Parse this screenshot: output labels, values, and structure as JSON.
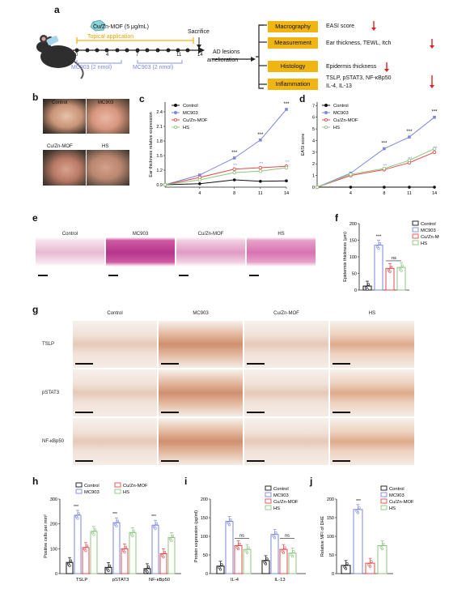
{
  "panels": {
    "a": "a",
    "b": "b",
    "c": "c",
    "d": "d",
    "e": "e",
    "f": "f",
    "g": "g",
    "h": "h",
    "i": "i",
    "j": "j"
  },
  "schematic": {
    "cuzn_dose": "Cu/Zn-MOF (5 μg/mL)",
    "topical": "Topical application",
    "sacrifice": "Sacrifice",
    "days": [
      "0",
      "4",
      "7",
      "11",
      "14"
    ],
    "mc903_a": "MC903 (2 nmol)",
    "mc903_b": "MC903 (2 nmol)",
    "ad1": "AD lesions",
    "ad2": "amelioration",
    "rows": [
      {
        "box": "Macrography",
        "text": "EASI score"
      },
      {
        "box": "Measurement",
        "text": "Ear thickness,  TEWL, Itch"
      },
      {
        "box": "Histology",
        "text": "Epidermis thickness"
      },
      {
        "box": "Inflammation",
        "text": "TSLP, pSTAT3, NF-κBp50",
        "text2": "IL-4, IL-13"
      }
    ],
    "accent": "#f1b512",
    "arrow": "#e02020"
  },
  "photos": {
    "labels": [
      "Control",
      "MC903",
      "Cu/Zn-MOF",
      "HS"
    ]
  },
  "colors": {
    "control": "#111111",
    "mc903": "#7b86e0",
    "cuzn": "#e84848",
    "hs": "#8cc47e"
  },
  "legend": [
    "Control",
    "MC903",
    "Cu/Zn-MOF",
    "HS"
  ],
  "histo_e": {
    "labels": [
      "Control",
      "MC903",
      "Cu/Zn-MOF",
      "HS"
    ]
  },
  "histo_g": {
    "cols": [
      "Control",
      "MC903",
      "Cu/Zn-MOF",
      "HS"
    ],
    "rows": [
      "TSLP",
      "pSTAT3",
      "NF-κBp50"
    ]
  },
  "chart_data": [
    {
      "type": "line",
      "id": "c",
      "ylabel": "Ear thickness relative expression",
      "x": [
        0,
        4,
        8,
        11,
        14
      ],
      "xticks": [
        "4",
        "8",
        "11",
        "14"
      ],
      "yticks": [
        "0.9",
        "1.2",
        "1.5",
        "1.8",
        "2.1",
        "2.4"
      ],
      "ylim": [
        0.85,
        2.6
      ],
      "series": [
        {
          "name": "Control",
          "values": [
            0.9,
            0.92,
            1.0,
            0.97,
            0.98
          ]
        },
        {
          "name": "MC903",
          "values": [
            0.9,
            1.1,
            1.45,
            1.82,
            2.45
          ]
        },
        {
          "name": "Cu/Zn-MOF",
          "values": [
            0.9,
            1.05,
            1.22,
            1.25,
            1.28
          ]
        },
        {
          "name": "HS",
          "values": [
            0.9,
            1.0,
            1.15,
            1.18,
            1.25
          ]
        }
      ],
      "annotations": [
        "***",
        "***",
        "***",
        "***",
        "***"
      ]
    },
    {
      "type": "line",
      "id": "d",
      "ylabel": "EASI score",
      "x": [
        0,
        4,
        8,
        11,
        14
      ],
      "xticks": [
        "4",
        "8",
        "11",
        "14"
      ],
      "yticks": [
        "0",
        "1",
        "2",
        "3",
        "4",
        "5",
        "6",
        "7"
      ],
      "ylim": [
        0,
        7.3
      ],
      "series": [
        {
          "name": "Control",
          "values": [
            0,
            0,
            0,
            0,
            0
          ]
        },
        {
          "name": "MC903",
          "values": [
            0,
            1.2,
            3.3,
            4.3,
            6.0
          ]
        },
        {
          "name": "Cu/Zn-MOF",
          "values": [
            0,
            1.0,
            1.5,
            2.1,
            3.0
          ]
        },
        {
          "name": "HS",
          "values": [
            0,
            1.1,
            1.6,
            2.3,
            3.3
          ]
        }
      ],
      "annotations": [
        "***",
        "***",
        "***"
      ]
    },
    {
      "type": "bar",
      "id": "f",
      "ylabel": "Epidermis thickness (μm)",
      "categories": [
        "Control",
        "MC903",
        "Cu/Zn-MOF",
        "HS"
      ],
      "values": [
        12,
        135,
        65,
        68
      ],
      "yticks": [
        "0",
        "50",
        "100",
        "150",
        "200"
      ],
      "ylim": [
        0,
        200
      ],
      "annotations": [
        "***",
        "ns"
      ]
    },
    {
      "type": "bar",
      "id": "h",
      "ylabel": "Positive cells per mm²",
      "categories": [
        "TSLP",
        "pSTAT3",
        "NF-κBp50"
      ],
      "series": [
        {
          "name": "Control",
          "values": [
            45,
            25,
            20
          ]
        },
        {
          "name": "MC903",
          "values": [
            235,
            205,
            195
          ]
        },
        {
          "name": "Cu/Zn-MOF",
          "values": [
            105,
            100,
            80
          ]
        },
        {
          "name": "HS",
          "values": [
            170,
            165,
            145
          ]
        }
      ],
      "yticks": [
        "0",
        "100",
        "200",
        "300"
      ],
      "ylim": [
        0,
        300
      ]
    },
    {
      "type": "bar",
      "id": "i",
      "ylabel": "Protein expression (pg/ml)",
      "categories": [
        "IL-4",
        "IL-13"
      ],
      "series": [
        {
          "name": "Control",
          "values": [
            20,
            35
          ]
        },
        {
          "name": "MC903",
          "values": [
            140,
            105
          ]
        },
        {
          "name": "Cu/Zn-MOF",
          "values": [
            75,
            65
          ]
        },
        {
          "name": "HS",
          "values": [
            65,
            55
          ]
        }
      ],
      "yticks": [
        "0",
        "50",
        "100",
        "150",
        "200"
      ],
      "ylim": [
        0,
        200
      ],
      "annotations": [
        "ns",
        "ns"
      ]
    },
    {
      "type": "bar",
      "id": "j",
      "ylabel": "Relative MFI of DHE",
      "categories": [
        "Control",
        "MC903",
        "Cu/Zn-MOF",
        "HS"
      ],
      "values": [
        22,
        172,
        28,
        75
      ],
      "yticks": [
        "0",
        "50",
        "100",
        "150",
        "200"
      ],
      "ylim": [
        0,
        200
      ]
    }
  ]
}
